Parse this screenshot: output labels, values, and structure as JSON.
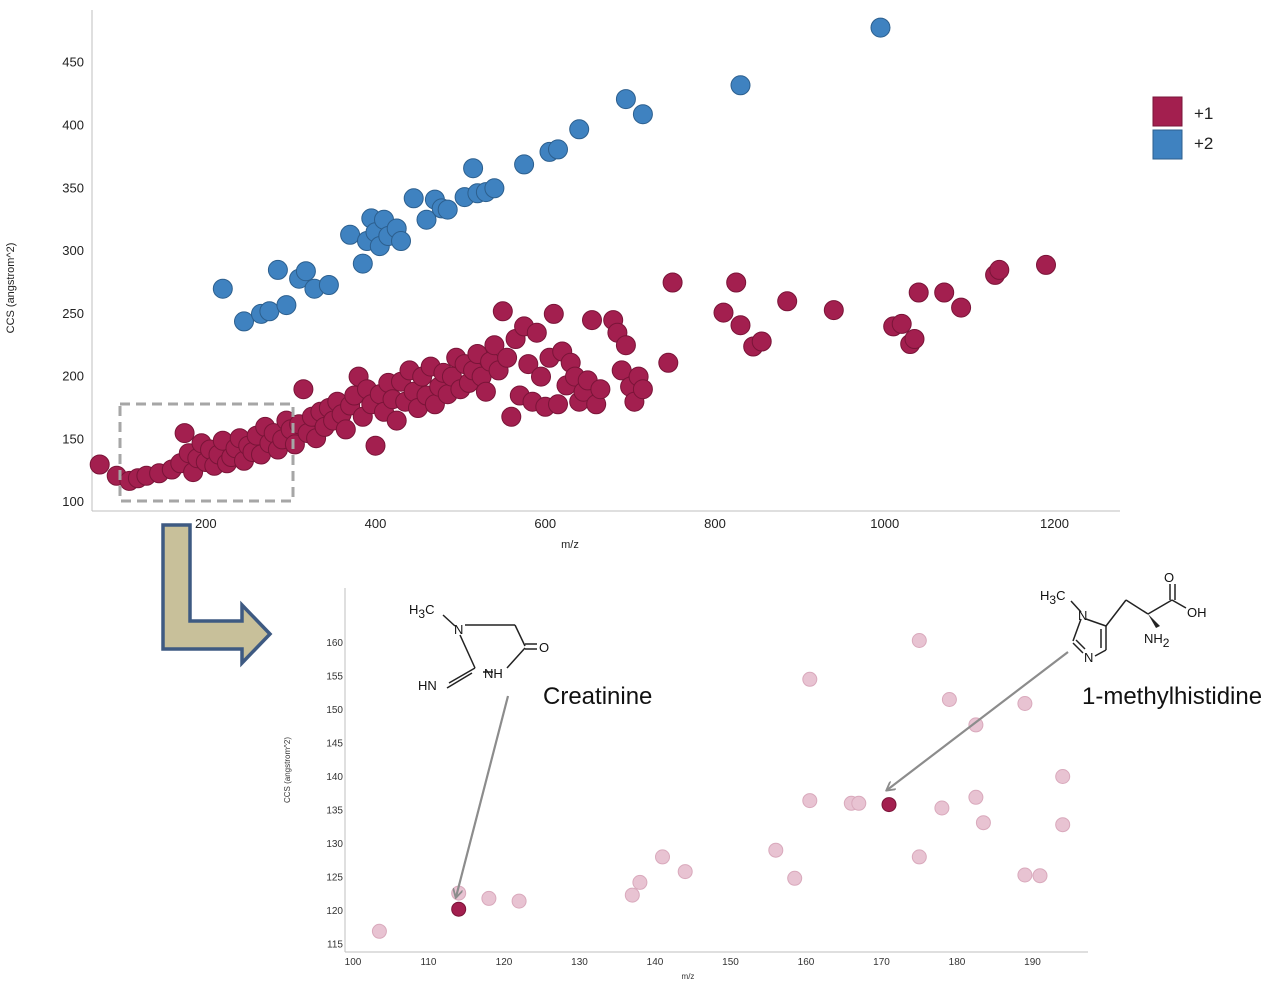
{
  "colors": {
    "plus1": "#A31F4F",
    "plus1_stroke": "#7A1438",
    "plus2": "#3F82C0",
    "plus2_stroke": "#2C5F8E",
    "faded": "#E8C3D2",
    "faded_stroke": "#D9A9BC",
    "arrow_fill": "#C8C09A",
    "arrow_stroke": "#3E5A82",
    "box_dash": "#A6A6A6",
    "pointer": "#8C8C8C",
    "axis_line": "#BFBFBF",
    "nitrogen": "#3C3CA0",
    "oxygen": "#D21E1E"
  },
  "chart_data": [
    {
      "type": "scatter",
      "title": "",
      "xlabel": "m/z",
      "ylabel": "CCS (angstrom^2)",
      "xlim": [
        40,
        1250
      ],
      "ylim": [
        93,
        492
      ],
      "xticks": [
        "200",
        "400",
        "600",
        "800",
        "1000",
        "1200"
      ],
      "yticks": [
        "100",
        "150",
        "200",
        "250",
        "300",
        "350",
        "400",
        "450"
      ],
      "legend": {
        "position": "right",
        "entries": [
          "+1",
          "+2"
        ]
      },
      "series": [
        {
          "name": "+1",
          "color": "#A31F4F",
          "points": [
            [
              75,
              130
            ],
            [
              95,
              121
            ],
            [
              110,
              117
            ],
            [
              120,
              119
            ],
            [
              130,
              121
            ],
            [
              145,
              123
            ],
            [
              160,
              126
            ],
            [
              170,
              131
            ],
            [
              175,
              155
            ],
            [
              180,
              139
            ],
            [
              185,
              124
            ],
            [
              190,
              135
            ],
            [
              195,
              147
            ],
            [
              200,
              132
            ],
            [
              205,
              142
            ],
            [
              210,
              129
            ],
            [
              215,
              138
            ],
            [
              220,
              149
            ],
            [
              225,
              131
            ],
            [
              230,
              136
            ],
            [
              235,
              143
            ],
            [
              240,
              151
            ],
            [
              245,
              133
            ],
            [
              250,
              145
            ],
            [
              255,
              140
            ],
            [
              260,
              153
            ],
            [
              265,
              138
            ],
            [
              270,
              160
            ],
            [
              275,
              147
            ],
            [
              280,
              155
            ],
            [
              285,
              142
            ],
            [
              290,
              150
            ],
            [
              295,
              165
            ],
            [
              300,
              158
            ],
            [
              305,
              146
            ],
            [
              310,
              162
            ],
            [
              315,
              190
            ],
            [
              320,
              155
            ],
            [
              325,
              168
            ],
            [
              330,
              151
            ],
            [
              335,
              172
            ],
            [
              340,
              160
            ],
            [
              345,
              175
            ],
            [
              350,
              165
            ],
            [
              355,
              180
            ],
            [
              360,
              170
            ],
            [
              365,
              158
            ],
            [
              370,
              177
            ],
            [
              375,
              185
            ],
            [
              380,
              200
            ],
            [
              385,
              168
            ],
            [
              390,
              190
            ],
            [
              395,
              178
            ],
            [
              400,
              145
            ],
            [
              405,
              186
            ],
            [
              410,
              172
            ],
            [
              415,
              195
            ],
            [
              420,
              182
            ],
            [
              425,
              165
            ],
            [
              430,
              196
            ],
            [
              435,
              180
            ],
            [
              440,
              205
            ],
            [
              445,
              188
            ],
            [
              450,
              175
            ],
            [
              455,
              200
            ],
            [
              460,
              185
            ],
            [
              465,
              208
            ],
            [
              470,
              178
            ],
            [
              475,
              192
            ],
            [
              480,
              203
            ],
            [
              485,
              186
            ],
            [
              490,
              200
            ],
            [
              495,
              215
            ],
            [
              500,
              190
            ],
            [
              505,
              210
            ],
            [
              510,
              195
            ],
            [
              515,
              205
            ],
            [
              520,
              218
            ],
            [
              525,
              200
            ],
            [
              530,
              188
            ],
            [
              535,
              212
            ],
            [
              540,
              225
            ],
            [
              545,
              205
            ],
            [
              550,
              252
            ],
            [
              555,
              215
            ],
            [
              560,
              168
            ],
            [
              565,
              230
            ],
            [
              570,
              185
            ],
            [
              575,
              240
            ],
            [
              580,
              210
            ],
            [
              585,
              180
            ],
            [
              590,
              235
            ],
            [
              595,
              200
            ],
            [
              600,
              176
            ],
            [
              605,
              215
            ],
            [
              610,
              250
            ],
            [
              615,
              178
            ],
            [
              620,
              220
            ],
            [
              625,
              193
            ],
            [
              630,
              211
            ],
            [
              635,
              200
            ],
            [
              640,
              180
            ],
            [
              645,
              188
            ],
            [
              650,
              197
            ],
            [
              655,
              245
            ],
            [
              660,
              178
            ],
            [
              665,
              190
            ],
            [
              680,
              245
            ],
            [
              685,
              235
            ],
            [
              690,
              205
            ],
            [
              695,
              225
            ],
            [
              700,
              192
            ],
            [
              705,
              180
            ],
            [
              710,
              200
            ],
            [
              715,
              190
            ],
            [
              745,
              211
            ],
            [
              750,
              275
            ],
            [
              810,
              251
            ],
            [
              825,
              275
            ],
            [
              830,
              241
            ],
            [
              845,
              224
            ],
            [
              855,
              228
            ],
            [
              885,
              260
            ],
            [
              940,
              253
            ],
            [
              1010,
              240
            ],
            [
              1020,
              242
            ],
            [
              1030,
              226
            ],
            [
              1035,
              230
            ],
            [
              1040,
              267
            ],
            [
              1070,
              267
            ],
            [
              1090,
              255
            ],
            [
              1130,
              281
            ],
            [
              1135,
              285
            ],
            [
              1190,
              289
            ]
          ]
        },
        {
          "name": "+2",
          "color": "#3F82C0",
          "points": [
            [
              220,
              270
            ],
            [
              245,
              244
            ],
            [
              265,
              250
            ],
            [
              275,
              252
            ],
            [
              285,
              285
            ],
            [
              295,
              257
            ],
            [
              310,
              278
            ],
            [
              318,
              284
            ],
            [
              328,
              270
            ],
            [
              345,
              273
            ],
            [
              370,
              313
            ],
            [
              385,
              290
            ],
            [
              390,
              308
            ],
            [
              395,
              326
            ],
            [
              400,
              315
            ],
            [
              405,
              304
            ],
            [
              410,
              325
            ],
            [
              415,
              312
            ],
            [
              425,
              318
            ],
            [
              430,
              308
            ],
            [
              445,
              342
            ],
            [
              460,
              325
            ],
            [
              470,
              341
            ],
            [
              478,
              334
            ],
            [
              485,
              333
            ],
            [
              505,
              343
            ],
            [
              515,
              366
            ],
            [
              520,
              346
            ],
            [
              530,
              347
            ],
            [
              540,
              350
            ],
            [
              575,
              369
            ],
            [
              605,
              379
            ],
            [
              615,
              381
            ],
            [
              640,
              397
            ],
            [
              695,
              421
            ],
            [
              715,
              409
            ],
            [
              830,
              432
            ],
            [
              995,
              478
            ]
          ]
        }
      ]
    },
    {
      "type": "scatter",
      "title": "",
      "xlabel": "m/z",
      "ylabel": "CCS (angstrom^2)",
      "xlim": [
        100,
        198
      ],
      "ylim": [
        114,
        162
      ],
      "xticks": [
        "100",
        "110",
        "120",
        "130",
        "140",
        "150",
        "160",
        "170",
        "180",
        "190"
      ],
      "yticks": [
        "115",
        "120",
        "125",
        "130",
        "135",
        "140",
        "145",
        "150",
        "155",
        "160"
      ],
      "series": [
        {
          "name": "",
          "color": "#E8C3D2",
          "points": [
            [
              103.5,
              116.9
            ],
            [
              114,
              122.6
            ],
            [
              118,
              121.8
            ],
            [
              122,
              121.4
            ],
            [
              137,
              122.3
            ],
            [
              138,
              124.2
            ],
            [
              141,
              128.0
            ],
            [
              144,
              125.8
            ],
            [
              156,
              129.0
            ],
            [
              158.5,
              124.8
            ],
            [
              160.5,
              136.4
            ],
            [
              160.5,
              154.5
            ],
            [
              166,
              136.0
            ],
            [
              167,
              136.0
            ],
            [
              175,
              160.3
            ],
            [
              175,
              128.0
            ],
            [
              178,
              135.3
            ],
            [
              179,
              151.5
            ],
            [
              182.5,
              147.7
            ],
            [
              182.5,
              136.9
            ],
            [
              183.5,
              133.1
            ],
            [
              189,
              125.3
            ],
            [
              189,
              150.9
            ],
            [
              191,
              125.2
            ],
            [
              194,
              132.8
            ],
            [
              194,
              140.0
            ]
          ]
        },
        {
          "name": "",
          "color": "#A31F4F",
          "points": [
            [
              114,
              120.2
            ],
            [
              171,
              135.8
            ]
          ]
        }
      ]
    }
  ],
  "annotations": {
    "creatinine": {
      "name": "Creatinine",
      "formula_h3c_main": "H",
      "formula_h3c_sub": "3",
      "formula_h3c_tail": "C",
      "atom_n1": "N",
      "atom_o": "O",
      "atom_hn": "HN",
      "atom_nh": "NH",
      "point": [
        114,
        120.2
      ]
    },
    "methylhistidine": {
      "name": "1-methylhistidine",
      "formula_h3c_main": "H",
      "formula_h3c_sub": "3",
      "formula_h3c_tail": "C",
      "atom_n_ring1": "N",
      "atom_n_ring2": "N",
      "atom_o": "O",
      "atom_oh": "OH",
      "atom_nh2_main": "NH",
      "atom_nh2_sub": "2",
      "point": [
        171,
        135.8
      ]
    }
  }
}
